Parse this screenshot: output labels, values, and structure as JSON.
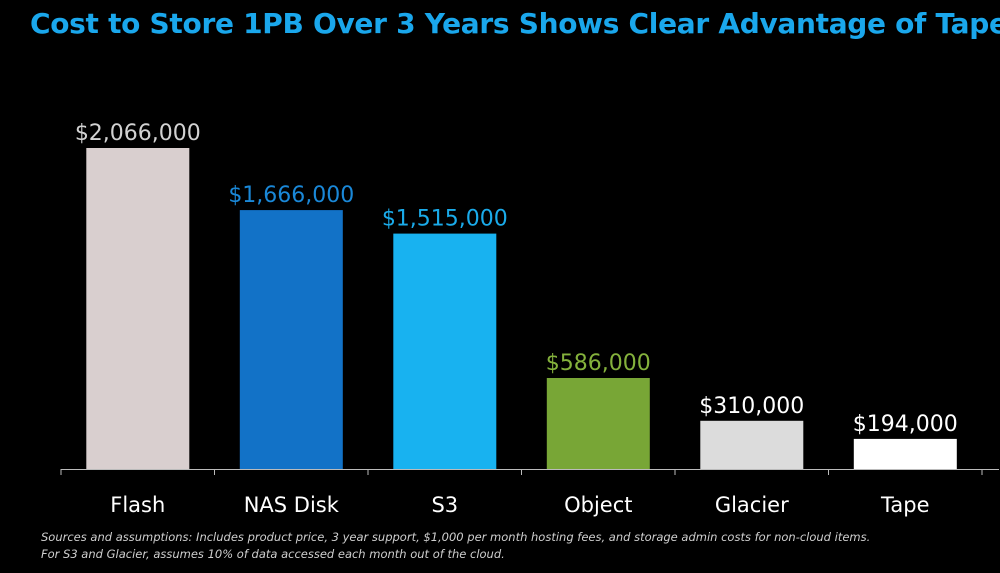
{
  "title": "Cost to Store 1PB Over 3 Years Shows Clear Advantage of Tape",
  "colors": {
    "background": "#000000",
    "title": "#1aa7ec",
    "axis": "#bbbbbb",
    "category_label": "#ffffff"
  },
  "chart_data": {
    "type": "bar",
    "title": "Cost to Store 1PB Over 3 Years Shows Clear Advantage of Tape",
    "categories": [
      "Flash",
      "NAS Disk",
      "S3",
      "Object",
      "Glacier",
      "Tape"
    ],
    "values": [
      2066000,
      1666000,
      1515000,
      586000,
      310000,
      194000
    ],
    "data_labels": [
      "$2,066,000",
      "$1,666,000",
      "$1,515,000",
      "$586,000",
      "$310,000",
      "$194,000"
    ],
    "bar_colors": [
      "#d9cfcf",
      "#1272c7",
      "#18b2f0",
      "#78a636",
      "#dcdcdc",
      "#ffffff"
    ],
    "label_colors": [
      "#d2d2d2",
      "#1a88d8",
      "#1aabea",
      "#84b13c",
      "#ffffff",
      "#ffffff"
    ],
    "xlabel": "",
    "ylabel": "",
    "ylim": [
      0,
      2066000
    ],
    "grid": false,
    "legend": "none"
  },
  "footnote": {
    "line1": "Sources and assumptions:  Includes product price, 3 year support, $1,000 per month hosting fees, and storage admin costs for non-cloud items.",
    "line2": "For S3 and Glacier, assumes 10% of data accessed each month out of the cloud."
  }
}
